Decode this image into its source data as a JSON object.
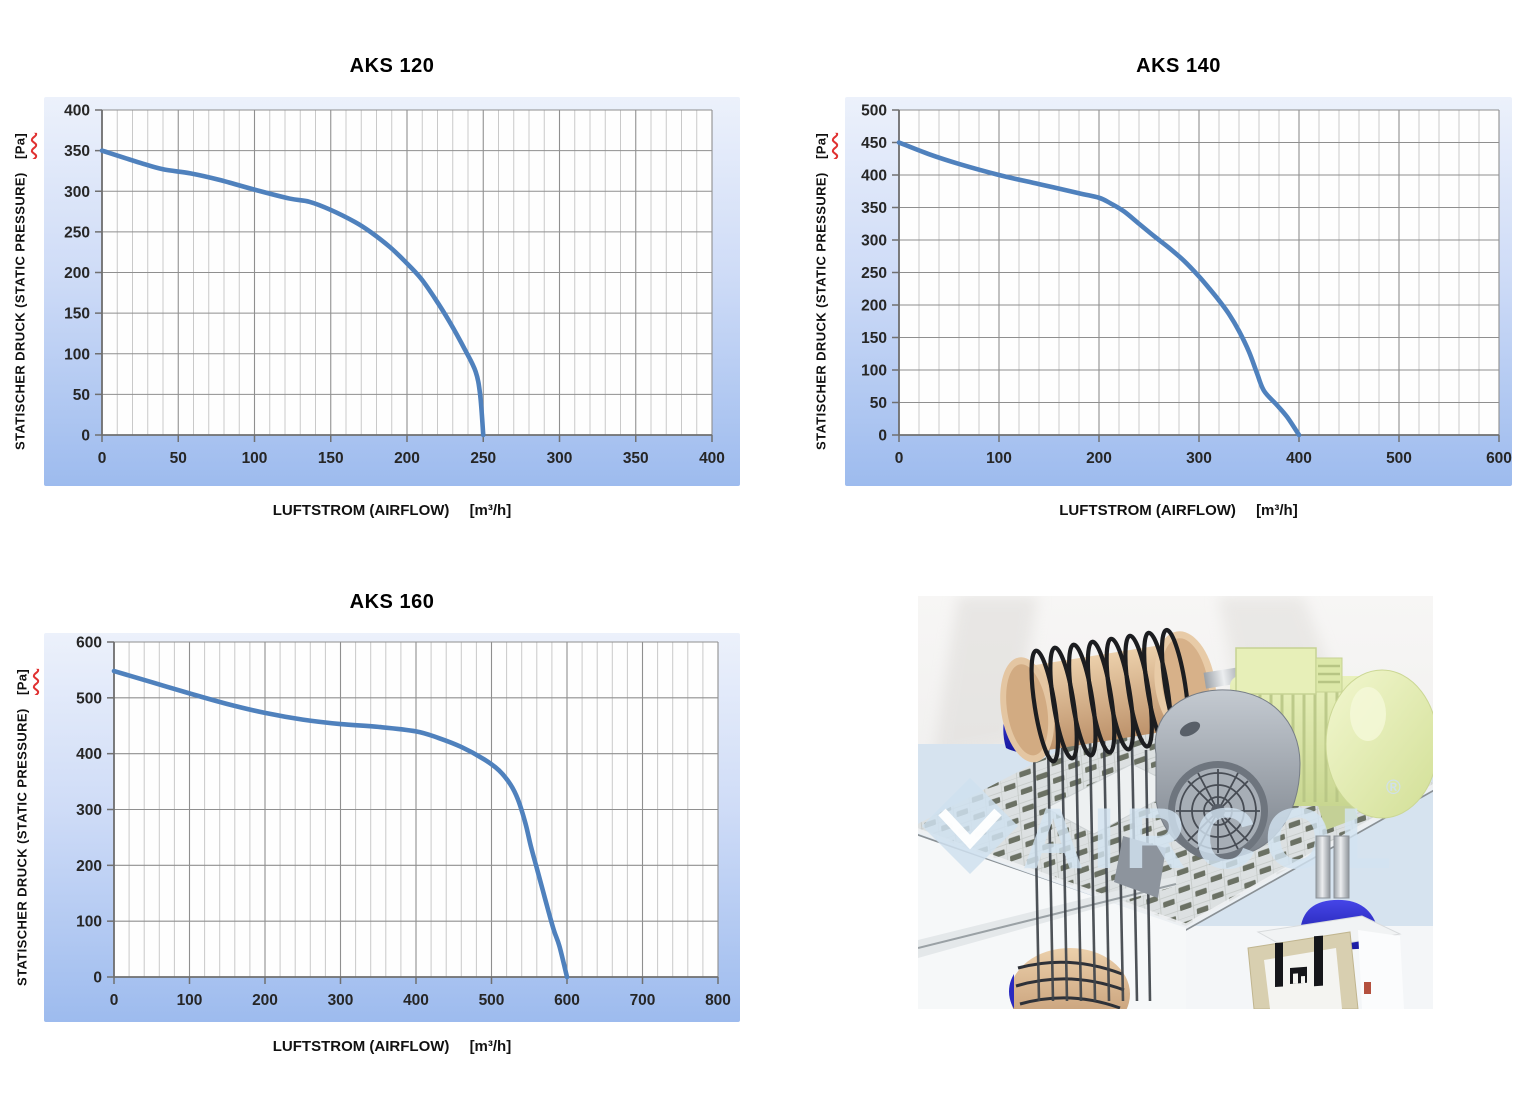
{
  "page": {
    "background": "#ffffff"
  },
  "colors": {
    "curve": "#4f81bd",
    "panel_top": "#ecf1fb",
    "panel_mid": "#cfdcf7",
    "panel_bottom": "#9dbbee",
    "plot_background": "#fefefe",
    "grid_major": "#8f8f8f",
    "grid_minor": "#c9c9c9",
    "axis_line": "#6f6f6f",
    "tick_text": "#262626",
    "title_text": "#000000",
    "spellcheck_underline": "#e03131",
    "watermark": "#d3e4f2"
  },
  "chart_data": [
    {
      "type": "line",
      "title": "AKS 120",
      "xlabel": "LUFTSTROM (AIRFLOW)",
      "xunit": "[m³/h]",
      "ylabel": "STATISCHER DRUCK (STATIC PRESSURE)",
      "yunit": "[Pa]",
      "xlim": [
        0,
        400
      ],
      "ylim": [
        0,
        400
      ],
      "x_ticks": [
        0,
        50,
        100,
        150,
        200,
        250,
        300,
        350,
        400
      ],
      "y_ticks": [
        0,
        50,
        100,
        150,
        200,
        250,
        300,
        350,
        400
      ],
      "x_minor_step": 10,
      "grid": "vertical minor+major, horizontal major",
      "legend": "none",
      "series": [
        {
          "name": "AKS 120",
          "points": [
            [
              0,
              350
            ],
            [
              25,
              335
            ],
            [
              40,
              327
            ],
            [
              58,
              322
            ],
            [
              77,
              314
            ],
            [
              100,
              302
            ],
            [
              123,
              291
            ],
            [
              136,
              287
            ],
            [
              150,
              277
            ],
            [
              166,
              262
            ],
            [
              176,
              250
            ],
            [
              189,
              231
            ],
            [
              199,
              213
            ],
            [
              209,
              193
            ],
            [
              218,
              169
            ],
            [
              228,
              139
            ],
            [
              238,
              105
            ],
            [
              245,
              78
            ],
            [
              248,
              49
            ],
            [
              250,
              0
            ]
          ]
        }
      ]
    },
    {
      "type": "line",
      "title": "AKS 140",
      "xlabel": "LUFTSTROM (AIRFLOW)",
      "xunit": "[m³/h]",
      "ylabel": "STATISCHER DRUCK (STATIC PRESSURE)",
      "yunit": "[Pa]",
      "xlim": [
        0,
        600
      ],
      "ylim": [
        0,
        500
      ],
      "x_ticks": [
        0,
        100,
        200,
        300,
        400,
        500,
        600
      ],
      "y_ticks": [
        0,
        50,
        100,
        150,
        200,
        250,
        300,
        350,
        400,
        450,
        500
      ],
      "x_minor_step": 20,
      "grid": "vertical minor+major, horizontal major",
      "legend": "none",
      "series": [
        {
          "name": "AKS 140",
          "points": [
            [
              0,
              450
            ],
            [
              30,
              432
            ],
            [
              60,
              417
            ],
            [
              100,
              400
            ],
            [
              140,
              386
            ],
            [
              180,
              372
            ],
            [
              200,
              365
            ],
            [
              212,
              356
            ],
            [
              225,
              344
            ],
            [
              240,
              325
            ],
            [
              255,
              306
            ],
            [
              270,
              288
            ],
            [
              285,
              268
            ],
            [
              300,
              244
            ],
            [
              310,
              226
            ],
            [
              320,
              207
            ],
            [
              330,
              186
            ],
            [
              340,
              160
            ],
            [
              350,
              128
            ],
            [
              358,
              95
            ],
            [
              365,
              68
            ],
            [
              378,
              46
            ],
            [
              388,
              28
            ],
            [
              400,
              0
            ]
          ]
        }
      ]
    },
    {
      "type": "line",
      "title": "AKS 160",
      "xlabel": "LUFTSTROM (AIRFLOW)",
      "xunit": "[m³/h]",
      "ylabel": "STATISCHER DRUCK (STATIC PRESSURE)",
      "yunit": "[Pa]",
      "xlim": [
        0,
        800
      ],
      "ylim": [
        0,
        600
      ],
      "x_ticks": [
        0,
        100,
        200,
        300,
        400,
        500,
        600,
        700,
        800
      ],
      "y_ticks": [
        0,
        100,
        200,
        300,
        400,
        500,
        600
      ],
      "x_minor_step": 20,
      "grid": "vertical minor+major, horizontal major",
      "legend": "none",
      "series": [
        {
          "name": "AKS 160",
          "points": [
            [
              0,
              548
            ],
            [
              50,
              528
            ],
            [
              100,
              508
            ],
            [
              150,
              489
            ],
            [
              200,
              473
            ],
            [
              250,
              461
            ],
            [
              300,
              453
            ],
            [
              350,
              448
            ],
            [
              400,
              440
            ],
            [
              430,
              428
            ],
            [
              460,
              412
            ],
            [
              490,
              390
            ],
            [
              510,
              370
            ],
            [
              525,
              345
            ],
            [
              535,
              318
            ],
            [
              545,
              275
            ],
            [
              552,
              235
            ],
            [
              560,
              195
            ],
            [
              568,
              155
            ],
            [
              576,
              115
            ],
            [
              583,
              82
            ],
            [
              590,
              55
            ],
            [
              600,
              0
            ]
          ]
        }
      ]
    }
  ],
  "product": {
    "watermark": "AIRCOL",
    "registered": "®"
  }
}
